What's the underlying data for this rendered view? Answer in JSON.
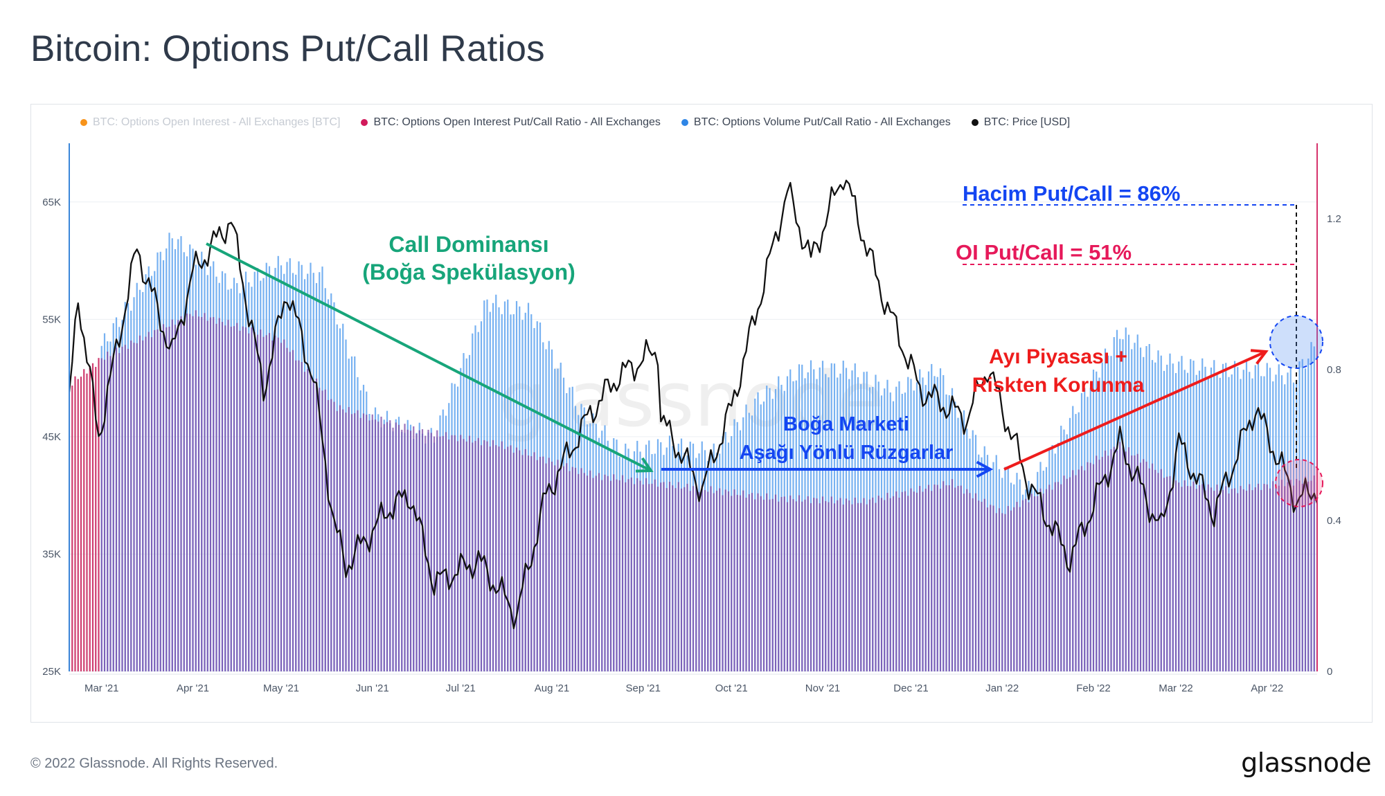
{
  "title": "Bitcoin: Options Put/Call Ratios",
  "legend": [
    {
      "label": "BTC: Options Open Interest - All Exchanges [BTC]",
      "color": "#f7931a",
      "muted": true
    },
    {
      "label": "BTC: Options Open Interest Put/Call Ratio - All Exchanges",
      "color": "#d11a5b",
      "muted": false
    },
    {
      "label": "BTC: Options Volume Put/Call Ratio - All Exchanges",
      "color": "#2f86e6",
      "muted": false
    },
    {
      "label": "BTC: Price [USD]",
      "color": "#111111",
      "muted": false
    }
  ],
  "watermark": "glassnode",
  "annotations": {
    "call_dom_line1": "Call Dominansı",
    "call_dom_line2": "(Boğa Spekülasyon)",
    "bull_line1": "Boğa Marketi",
    "bull_line2": "Aşağı Yönlü Rüzgarlar",
    "bear_line1": "Ayı Piyasası +",
    "bear_line2": "Riskten Korunma",
    "vol_pc": "Hacim Put/Call = 86%",
    "oi_pc": "OI Put/Call = 51%"
  },
  "colors": {
    "call_dom": "#17a57a",
    "bull": "#1446f2",
    "bear": "#ee1c1c",
    "vol": "#1446f2",
    "oi": "#e6195a"
  },
  "footer": "© 2022 Glassnode. All Rights Reserved.",
  "brand": "glassnode",
  "chart_data": {
    "type": "line",
    "x_ticks": [
      "Mar '21",
      "Apr '21",
      "May '21",
      "Jun '21",
      "Jul '21",
      "Aug '21",
      "Sep '21",
      "Oct '21",
      "Nov '21",
      "Dec '21",
      "Jan '22",
      "Feb '22",
      "Mar '22",
      "Apr '22"
    ],
    "y_left_ticks": [
      "25K",
      "35K",
      "45K",
      "55K",
      "65K"
    ],
    "y_left_range": [
      25000,
      70000
    ],
    "y_right_ticks": [
      "0",
      "0.4",
      "0.8",
      "1.2"
    ],
    "y_right_range": [
      0,
      1.4
    ],
    "grid": true,
    "legend_position": "top-left",
    "series": [
      {
        "name": "BTC: Price [USD]",
        "axis": "left",
        "points": [
          [
            "Feb 18 '21",
            48000
          ],
          [
            "Feb 21 '21",
            57000
          ],
          [
            "Feb 28 '21",
            45000
          ],
          [
            "Mar 13 '21",
            61000
          ],
          [
            "Mar 25 '21",
            52000
          ],
          [
            "Apr 1 '21",
            59000
          ],
          [
            "Apr 14 '21",
            63500
          ],
          [
            "Apr 25 '21",
            49000
          ],
          [
            "May 3 '21",
            57500
          ],
          [
            "May 12 '21",
            50000
          ],
          [
            "May 19 '21",
            37500
          ],
          [
            "May 23 '21",
            34000
          ],
          [
            "Jun 7 '21",
            39000
          ],
          [
            "Jun 14 '21",
            40000
          ],
          [
            "Jun 22 '21",
            32500
          ],
          [
            "Jul 7 '21",
            34500
          ],
          [
            "Jul 20 '21",
            29800
          ],
          [
            "Jul 30 '21",
            40000
          ],
          [
            "Aug 14 '21",
            47000
          ],
          [
            "Aug 23 '21",
            50000
          ],
          [
            "Sep 6 '21",
            52500
          ],
          [
            "Sep 7 '21",
            46500
          ],
          [
            "Sep 21 '21",
            40500
          ],
          [
            "Oct 1 '21",
            47500
          ],
          [
            "Oct 15 '21",
            61000
          ],
          [
            "Oct 20 '21",
            66000
          ],
          [
            "Oct 28 '21",
            60000
          ],
          [
            "Nov 8 '21",
            67500
          ],
          [
            "Nov 20 '21",
            58000
          ],
          [
            "Dec 4 '21",
            49000
          ],
          [
            "Dec 20 '21",
            46500
          ],
          [
            "Dec 27 '21",
            51000
          ],
          [
            "Jan 10 '22",
            41000
          ],
          [
            "Jan 24 '22",
            34500
          ],
          [
            "Feb 10 '22",
            44500
          ],
          [
            "Feb 24 '22",
            37000
          ],
          [
            "Mar 2 '22",
            44500
          ],
          [
            "Mar 14 '22",
            38500
          ],
          [
            "Mar 28 '22",
            47500
          ],
          [
            "Apr 11 '22",
            39500
          ],
          [
            "Apr 17 '22",
            40500
          ]
        ]
      },
      {
        "name": "BTC: Options Volume Put/Call Ratio - All Exchanges",
        "axis": "right",
        "points": [
          [
            "Mar 1 '21",
            0.86
          ],
          [
            "Mar 25 '21",
            1.15
          ],
          [
            "Apr 15 '21",
            1.02
          ],
          [
            "May 1 '21",
            1.08
          ],
          [
            "May 15 '21",
            1.05
          ],
          [
            "Jun 1 '21",
            0.68
          ],
          [
            "Jun 22 '21",
            0.62
          ],
          [
            "Jul 10 '21",
            0.98
          ],
          [
            "Jul 25 '21",
            0.95
          ],
          [
            "Aug 10 '21",
            0.7
          ],
          [
            "Aug 25 '21",
            0.58
          ],
          [
            "Sep 10 '21",
            0.6
          ],
          [
            "Sep 25 '21",
            0.58
          ],
          [
            "Oct 10 '21",
            0.72
          ],
          [
            "Oct 25 '21",
            0.8
          ],
          [
            "Nov 10 '21",
            0.8
          ],
          [
            "Nov 25 '21",
            0.74
          ],
          [
            "Dec 10 '21",
            0.8
          ],
          [
            "Dec 25 '21",
            0.58
          ],
          [
            "Jan 10 '22",
            0.48
          ],
          [
            "Jan 25 '22",
            0.68
          ],
          [
            "Feb 10 '22",
            0.9
          ],
          [
            "Feb 25 '22",
            0.82
          ],
          [
            "Mar 15 '22",
            0.8
          ],
          [
            "Mar 30 '22",
            0.8
          ],
          [
            "Apr 10 '22",
            0.78
          ],
          [
            "Apr 17 '22",
            0.86
          ]
        ]
      },
      {
        "name": "BTC: Options Open Interest Put/Call Ratio - All Exchanges",
        "axis": "right",
        "points": [
          [
            "Feb 18 '21",
            0.76
          ],
          [
            "Mar 1 '21",
            0.83
          ],
          [
            "Apr 1 '21",
            0.95
          ],
          [
            "May 1 '21",
            0.88
          ],
          [
            "May 20 '21",
            0.7
          ],
          [
            "Jun 15 '21",
            0.64
          ],
          [
            "Jul 15 '21",
            0.6
          ],
          [
            "Aug 15 '21",
            0.52
          ],
          [
            "Sep 15 '21",
            0.49
          ],
          [
            "Oct 15 '21",
            0.46
          ],
          [
            "Nov 15 '21",
            0.45
          ],
          [
            "Dec 15 '21",
            0.5
          ],
          [
            "Jan 1 '22",
            0.42
          ],
          [
            "Jan 20 '22",
            0.5
          ],
          [
            "Feb 10 '22",
            0.6
          ],
          [
            "Mar 1 '22",
            0.5
          ],
          [
            "Mar 20 '22",
            0.48
          ],
          [
            "Apr 17 '22",
            0.51
          ]
        ]
      }
    ]
  }
}
